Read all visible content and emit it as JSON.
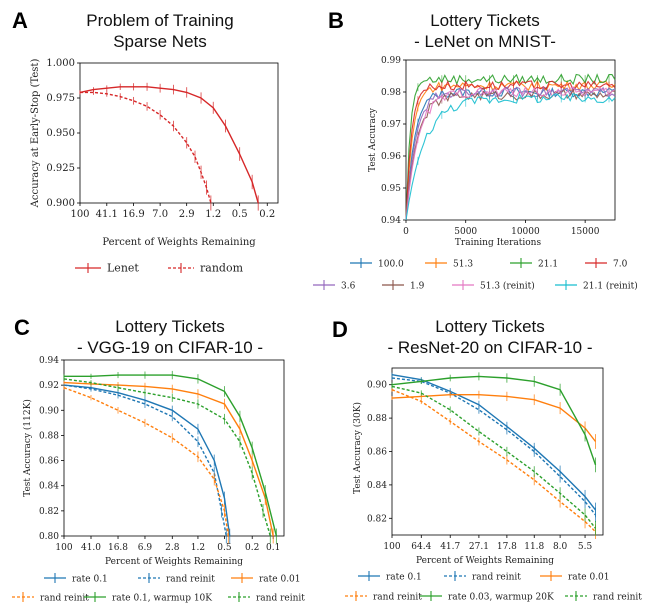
{
  "chart_data": [
    {
      "id": "A",
      "type": "line",
      "label": "A",
      "title": [
        "Problem of Training",
        "Sparse Nets"
      ],
      "xlabel": "Percent of Weights Remaining",
      "ylabel": "Accuracy at Early-Stop (Test)",
      "xscale": "log-reversed",
      "xlim": [
        100,
        0.14
      ],
      "ylim": [
        0.9,
        1.0
      ],
      "xticks": [
        100,
        41.1,
        16.9,
        7.0,
        2.9,
        1.2,
        0.5,
        0.2
      ],
      "xtick_labels": [
        "100",
        "41.1",
        "16.9",
        "7.0",
        "2.9",
        "1.2",
        "0.5",
        "0.2"
      ],
      "yticks": [
        0.9,
        0.925,
        0.95,
        0.975,
        1.0
      ],
      "ytick_labels": [
        "0.900",
        "0.925",
        "0.950",
        "0.975",
        "1.000"
      ],
      "legend_position": "below",
      "series": [
        {
          "name": "Lenet",
          "color": "#d62728",
          "dash": "",
          "x": [
            100,
            64,
            41.1,
            26.3,
            16.9,
            10.8,
            7.0,
            4.5,
            2.9,
            1.8,
            1.2,
            0.8,
            0.5,
            0.33,
            0.27
          ],
          "y": [
            0.979,
            0.981,
            0.982,
            0.983,
            0.983,
            0.983,
            0.982,
            0.981,
            0.979,
            0.975,
            0.968,
            0.955,
            0.935,
            0.915,
            0.9
          ]
        },
        {
          "name": "random",
          "color": "#d62728",
          "dash": "3,2",
          "x": [
            100,
            64,
            41.1,
            26.3,
            16.9,
            10.8,
            7.0,
            4.5,
            2.9,
            2.2,
            1.8,
            1.5,
            1.3
          ],
          "y": [
            0.979,
            0.979,
            0.978,
            0.976,
            0.973,
            0.969,
            0.963,
            0.955,
            0.943,
            0.933,
            0.922,
            0.911,
            0.9
          ]
        }
      ]
    },
    {
      "id": "B",
      "type": "line",
      "label": "B",
      "title": [
        "Lottery Tickets",
        "- LeNet on MNIST-"
      ],
      "xlabel": "Training Iterations",
      "ylabel": "Test Accuracy",
      "xlim": [
        0,
        17500
      ],
      "ylim": [
        0.94,
        0.99
      ],
      "xticks": [
        0,
        5000,
        10000,
        15000
      ],
      "xtick_labels": [
        "0",
        "5000",
        "10000",
        "15000"
      ],
      "yticks": [
        0.94,
        0.95,
        0.96,
        0.97,
        0.98,
        0.99
      ],
      "ytick_labels": [
        "0.94",
        "0.95",
        "0.96",
        "0.97",
        "0.98",
        "0.99"
      ],
      "legend_position": "below",
      "series": [
        {
          "name": "100.0",
          "color": "#1f77b4",
          "dash": "",
          "plateau": 0.98,
          "k": 700
        },
        {
          "name": "51.3",
          "color": "#ff7f0e",
          "dash": "",
          "plateau": 0.982,
          "k": 550
        },
        {
          "name": "21.1",
          "color": "#2ca02c",
          "dash": "",
          "plateau": 0.984,
          "k": 350
        },
        {
          "name": "7.0",
          "color": "#d62728",
          "dash": "",
          "plateau": 0.982,
          "k": 450
        },
        {
          "name": "3.6",
          "color": "#9467bd",
          "dash": "",
          "plateau": 0.98,
          "k": 800
        },
        {
          "name": "1.9",
          "color": "#8c564b",
          "dash": "",
          "plateau": 0.979,
          "k": 900
        },
        {
          "name": "51.3 (reinit)",
          "color": "#e377c2",
          "dash": "",
          "plateau": 0.98,
          "k": 1000
        },
        {
          "name": "21.1 (reinit)",
          "color": "#17becf",
          "dash": "",
          "plateau": 0.978,
          "k": 1500
        }
      ]
    },
    {
      "id": "C",
      "type": "line",
      "label": "C",
      "title": [
        "Lottery Tickets",
        "- VGG-19 on CIFAR-10 -"
      ],
      "xlabel": "Percent of Weights Remaining",
      "ylabel": "Test Accuracy (112K)",
      "xscale": "log-reversed",
      "xlim": [
        100,
        0.07
      ],
      "ylim": [
        0.8,
        0.94
      ],
      "xticks": [
        100,
        41.0,
        16.8,
        6.9,
        2.8,
        1.2,
        0.5,
        0.2,
        0.1
      ],
      "xtick_labels": [
        "100",
        "41.0",
        "16.8",
        "6.9",
        "2.8",
        "1.2",
        "0.5",
        "0.2",
        "0.1"
      ],
      "yticks": [
        0.8,
        0.82,
        0.84,
        0.86,
        0.88,
        0.9,
        0.92,
        0.94
      ],
      "ytick_labels": [
        "0.80",
        "0.82",
        "0.84",
        "0.86",
        "0.88",
        "0.90",
        "0.92",
        "0.94"
      ],
      "legend_position": "below",
      "series": [
        {
          "name": "rate 0.1",
          "color": "#1f77b4",
          "dash": "",
          "x": [
            100,
            41,
            16.8,
            6.9,
            2.8,
            1.2,
            0.7,
            0.5,
            0.42
          ],
          "y": [
            0.92,
            0.918,
            0.914,
            0.908,
            0.9,
            0.885,
            0.86,
            0.83,
            0.8
          ]
        },
        {
          "name": "rand reinit",
          "color": "#1f77b4",
          "dash": "3,2",
          "x": [
            100,
            41,
            16.8,
            6.9,
            2.8,
            1.2,
            0.7,
            0.55,
            0.47
          ],
          "y": [
            0.92,
            0.917,
            0.912,
            0.905,
            0.895,
            0.875,
            0.85,
            0.82,
            0.8
          ]
        },
        {
          "name": "rate 0.01",
          "color": "#ff7f0e",
          "dash": "",
          "x": [
            100,
            41,
            16.8,
            6.9,
            2.8,
            1.2,
            0.5,
            0.3,
            0.2,
            0.13,
            0.1
          ],
          "y": [
            0.922,
            0.921,
            0.92,
            0.919,
            0.917,
            0.913,
            0.905,
            0.885,
            0.86,
            0.83,
            0.8
          ]
        },
        {
          "name": "rand reinit",
          "color": "#ff7f0e",
          "dash": "3,2",
          "x": [
            100,
            41,
            16.8,
            6.9,
            2.8,
            1.2,
            0.7,
            0.5,
            0.44
          ],
          "y": [
            0.918,
            0.91,
            0.9,
            0.89,
            0.878,
            0.863,
            0.845,
            0.82,
            0.8
          ]
        },
        {
          "name": "rate 0.1, warmup 10K",
          "color": "#2ca02c",
          "dash": "",
          "x": [
            100,
            41,
            16.8,
            6.9,
            2.8,
            1.2,
            0.5,
            0.3,
            0.2,
            0.13,
            0.09
          ],
          "y": [
            0.927,
            0.927,
            0.928,
            0.928,
            0.928,
            0.925,
            0.915,
            0.895,
            0.87,
            0.835,
            0.8
          ]
        },
        {
          "name": "rand reinit",
          "color": "#2ca02c",
          "dash": "3,2",
          "x": [
            100,
            41,
            16.8,
            6.9,
            2.8,
            1.2,
            0.5,
            0.3,
            0.2,
            0.14,
            0.11
          ],
          "y": [
            0.925,
            0.922,
            0.918,
            0.914,
            0.91,
            0.905,
            0.893,
            0.875,
            0.85,
            0.82,
            0.8
          ]
        }
      ]
    },
    {
      "id": "D",
      "type": "line",
      "label": "D",
      "title": [
        "Lottery Tickets",
        "- ResNet-20 on CIFAR-10 -"
      ],
      "xlabel": "Percent of Weights Remaining",
      "ylabel": "Test Accuracy (30K)",
      "xscale": "log-reversed",
      "xlim": [
        100,
        4.2
      ],
      "ylim": [
        0.81,
        0.91
      ],
      "xticks": [
        100,
        64.4,
        41.7,
        27.1,
        17.8,
        11.8,
        8.0,
        5.5
      ],
      "xtick_labels": [
        "100",
        "64.4",
        "41.7",
        "27.1",
        "17.8",
        "11.8",
        "8.0",
        "5.5"
      ],
      "yticks": [
        0.82,
        0.84,
        0.86,
        0.88,
        0.9
      ],
      "ytick_labels": [
        "0.82",
        "0.84",
        "0.86",
        "0.88",
        "0.90"
      ],
      "legend_position": "below",
      "series": [
        {
          "name": "rate 0.1",
          "color": "#1f77b4",
          "dash": "",
          "x": [
            100,
            64.4,
            41.7,
            27.1,
            17.8,
            11.8,
            8.0,
            5.5,
            4.7
          ],
          "y": [
            0.906,
            0.903,
            0.896,
            0.888,
            0.875,
            0.862,
            0.848,
            0.833,
            0.825
          ]
        },
        {
          "name": "rand reinit",
          "color": "#1f77b4",
          "dash": "3,2",
          "x": [
            100,
            64.4,
            41.7,
            27.1,
            17.8,
            11.8,
            8.0,
            5.5,
            4.7
          ],
          "y": [
            0.904,
            0.902,
            0.895,
            0.885,
            0.873,
            0.86,
            0.845,
            0.83,
            0.822
          ]
        },
        {
          "name": "rate 0.01",
          "color": "#ff7f0e",
          "dash": "",
          "x": [
            100,
            64.4,
            41.7,
            27.1,
            17.8,
            11.8,
            8.0,
            5.5,
            4.7
          ],
          "y": [
            0.892,
            0.893,
            0.894,
            0.894,
            0.893,
            0.891,
            0.886,
            0.874,
            0.866
          ]
        },
        {
          "name": "rand reinit",
          "color": "#ff7f0e",
          "dash": "3,2",
          "x": [
            100,
            64.4,
            41.7,
            27.1,
            17.8,
            11.8,
            8.0,
            5.5,
            4.7
          ],
          "y": [
            0.897,
            0.89,
            0.878,
            0.866,
            0.855,
            0.843,
            0.83,
            0.818,
            0.812
          ]
        },
        {
          "name": "rate 0.03, warmup 20K",
          "color": "#2ca02c",
          "dash": "",
          "x": [
            100,
            64.4,
            41.7,
            27.1,
            17.8,
            11.8,
            8.0,
            5.5,
            4.7
          ],
          "y": [
            0.9,
            0.902,
            0.904,
            0.905,
            0.904,
            0.902,
            0.897,
            0.87,
            0.852
          ]
        },
        {
          "name": "rand reinit",
          "color": "#2ca02c",
          "dash": "3,2",
          "x": [
            100,
            64.4,
            41.7,
            27.1,
            17.8,
            11.8,
            8.0,
            5.5,
            4.7
          ],
          "y": [
            0.899,
            0.895,
            0.885,
            0.872,
            0.86,
            0.848,
            0.835,
            0.822,
            0.814
          ]
        }
      ]
    }
  ]
}
